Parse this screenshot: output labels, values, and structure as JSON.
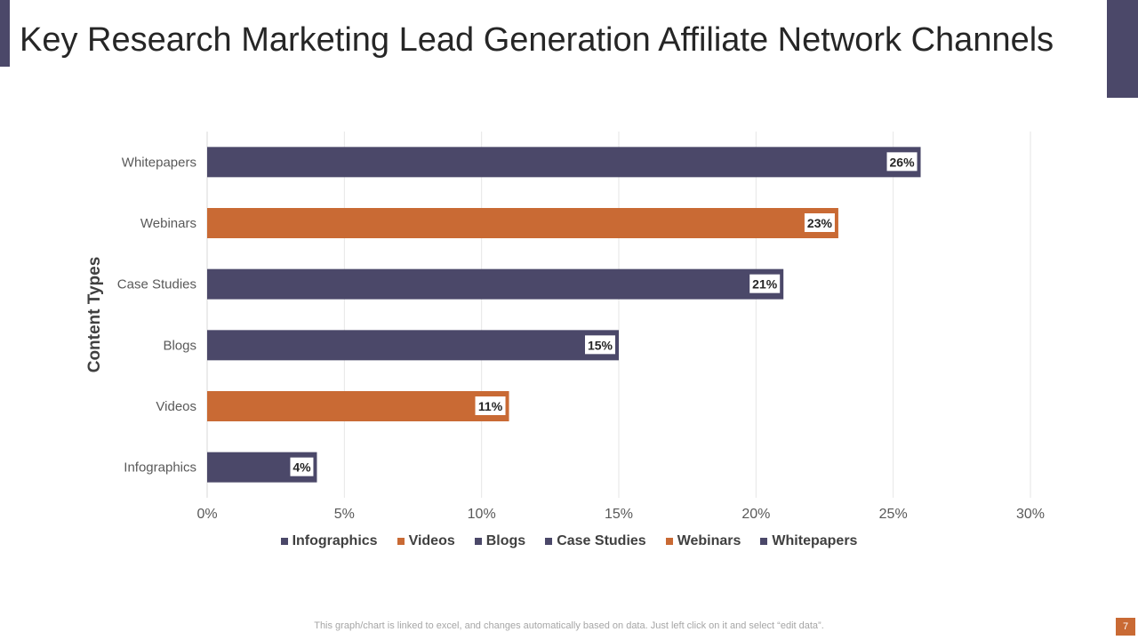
{
  "slide": {
    "title": "Key Research Marketing Lead Generation Affiliate Network Channels",
    "footer_note": "This graph/chart is linked to excel,  and changes automatically based on data. Just left click on it and select “edit data”.",
    "page_number": "7"
  },
  "colors": {
    "primary": "#4b4869",
    "accent": "#c96a34"
  },
  "chart_data": {
    "type": "bar",
    "orientation": "horizontal",
    "title": "",
    "ylabel": "Content Types",
    "xlabel": "",
    "categories": [
      "Infographics",
      "Videos",
      "Blogs",
      "Case Studies",
      "Webinars",
      "Whitepapers"
    ],
    "values": [
      4,
      11,
      15,
      21,
      23,
      26
    ],
    "data_labels": [
      "4%",
      "11%",
      "15%",
      "21%",
      "23%",
      "26%"
    ],
    "bar_colors": [
      "#4b4869",
      "#c96a34",
      "#4b4869",
      "#4b4869",
      "#c96a34",
      "#4b4869"
    ],
    "xlim": [
      0,
      30
    ],
    "xticks": [
      0,
      5,
      10,
      15,
      20,
      25,
      30
    ],
    "xtick_labels": [
      "0%",
      "5%",
      "10%",
      "15%",
      "20%",
      "25%",
      "30%"
    ],
    "grid": true,
    "legend_position": "bottom"
  }
}
